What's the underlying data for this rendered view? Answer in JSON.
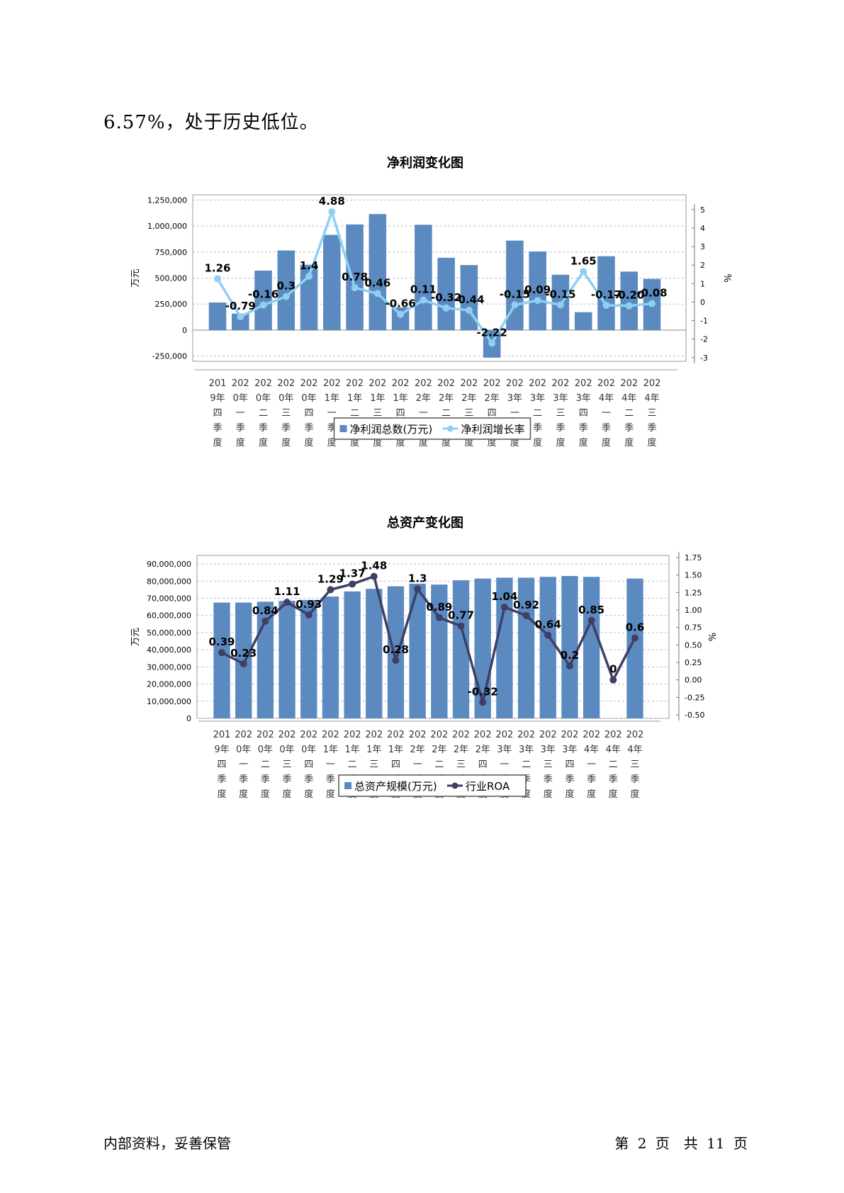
{
  "intro_text": "6.57%，处于历史低位。",
  "footer": {
    "left": "内部资料，妥善保管",
    "right": "第 2 页　共 11 页"
  },
  "colors": {
    "bar": "#5b8ac0",
    "line1": "#8ecff2",
    "line2": "#3f3f66",
    "grid": "#b9b9e8"
  },
  "chart_data": [
    {
      "type": "bar",
      "title": "净利润变化图",
      "ylabel": "万元",
      "y2label": "%",
      "ylim": [
        -300000,
        1300000
      ],
      "y2lim": [
        -3.2,
        5.8
      ],
      "yticks": [
        -250000,
        0,
        250000,
        500000,
        750000,
        1000000,
        1250000
      ],
      "ytick_labels": [
        "-250,000",
        "0",
        "250,000",
        "500,000",
        "750,000",
        "1,000,000",
        "1,250,000"
      ],
      "y2ticks": [
        -3,
        -2,
        -1,
        0,
        1,
        2,
        3,
        4,
        5
      ],
      "y2tick_labels": [
        "-3",
        "-2",
        "-1",
        "0",
        "1",
        "2",
        "3",
        "4",
        "5"
      ],
      "categories": [
        [
          "201",
          "9年",
          "四",
          "季",
          "度"
        ],
        [
          "202",
          "0年",
          "一",
          "季",
          "度"
        ],
        [
          "202",
          "0年",
          "二",
          "季",
          "度"
        ],
        [
          "202",
          "0年",
          "三",
          "季",
          "度"
        ],
        [
          "202",
          "0年",
          "四",
          "季",
          "度"
        ],
        [
          "202",
          "1年",
          "一",
          "季",
          "度"
        ],
        [
          "202",
          "1年",
          "二",
          "季",
          "度"
        ],
        [
          "202",
          "1年",
          "三",
          "季",
          "度"
        ],
        [
          "202",
          "1年",
          "四",
          "季",
          "度"
        ],
        [
          "202",
          "2年",
          "一",
          "季",
          "度"
        ],
        [
          "202",
          "2年",
          "二",
          "季",
          "度"
        ],
        [
          "202",
          "2年",
          "三",
          "季",
          "度"
        ],
        [
          "202",
          "2年",
          "四",
          "季",
          "度"
        ],
        [
          "202",
          "3年",
          "一",
          "季",
          "度"
        ],
        [
          "202",
          "3年",
          "二",
          "季",
          "度"
        ],
        [
          "202",
          "3年",
          "三",
          "季",
          "度"
        ],
        [
          "202",
          "3年",
          "四",
          "季",
          "度"
        ],
        [
          "202",
          "4年",
          "一",
          "季",
          "度"
        ],
        [
          "202",
          "4年",
          "二",
          "季",
          "度"
        ],
        [
          "202",
          "4年",
          "三",
          "季",
          "度"
        ]
      ],
      "series": [
        {
          "name": "净利润总数(万元)",
          "kind": "bar",
          "values": [
            265000,
            158000,
            572000,
            765000,
            628000,
            915000,
            1015000,
            1115000,
            218000,
            1012000,
            695000,
            625000,
            -265000,
            860000,
            755000,
            532000,
            172000,
            710000,
            562000,
            492000
          ]
        },
        {
          "name": "净利润增长率",
          "kind": "line",
          "axis": "right",
          "values": [
            1.26,
            -0.79,
            -0.16,
            0.3,
            1.4,
            4.88,
            0.78,
            0.46,
            -0.66,
            0.11,
            -0.32,
            -0.44,
            -2.22,
            -0.15,
            0.09,
            -0.15,
            1.65,
            -0.17,
            -0.2,
            -0.08
          ],
          "labels": [
            "1.26",
            "-0.79",
            "-0.16",
            "0.3",
            "1.4",
            "4.88",
            "0.78",
            "0.46",
            "-0.66",
            "0.11",
            "-0.32",
            "-0.44",
            "-2.22",
            "-0.15",
            "0.09",
            "-0.15",
            "1.65",
            "-0.17",
            "-0.20",
            "-0.08"
          ]
        }
      ],
      "legend_position": "bottom"
    },
    {
      "type": "bar",
      "title": "总资产变化图",
      "ylabel": "万元",
      "y2label": "%",
      "ylim": [
        0,
        95000000
      ],
      "y2lim": [
        -0.55,
        1.78
      ],
      "yticks": [
        0,
        10000000,
        20000000,
        30000000,
        40000000,
        50000000,
        60000000,
        70000000,
        80000000,
        90000000
      ],
      "ytick_labels": [
        "0",
        "10,000,000",
        "20,000,000",
        "30,000,000",
        "40,000,000",
        "50,000,000",
        "60,000,000",
        "70,000,000",
        "80,000,000",
        "90,000,000"
      ],
      "y2ticks": [
        -0.5,
        -0.25,
        0,
        0.25,
        0.5,
        0.75,
        1.0,
        1.25,
        1.5,
        1.75
      ],
      "y2tick_labels": [
        "-0.50",
        "-0.25",
        "0.00",
        "0.25",
        "0.50",
        "0.75",
        "1.00",
        "1.25",
        "1.50",
        "1.75"
      ],
      "categories": [
        [
          "201",
          "9年",
          "四",
          "季",
          "度"
        ],
        [
          "202",
          "0年",
          "一",
          "季",
          "度"
        ],
        [
          "202",
          "0年",
          "二",
          "季",
          "度"
        ],
        [
          "202",
          "0年",
          "三",
          "季",
          "度"
        ],
        [
          "202",
          "0年",
          "四",
          "季",
          "度"
        ],
        [
          "202",
          "1年",
          "一",
          "季",
          "度"
        ],
        [
          "202",
          "1年",
          "二",
          "季",
          "度"
        ],
        [
          "202",
          "1年",
          "三",
          "季",
          "度"
        ],
        [
          "202",
          "1年",
          "四",
          "季",
          "度"
        ],
        [
          "202",
          "2年",
          "一",
          "季",
          "度"
        ],
        [
          "202",
          "2年",
          "二",
          "季",
          "度"
        ],
        [
          "202",
          "2年",
          "三",
          "季",
          "度"
        ],
        [
          "202",
          "2年",
          "四",
          "季",
          "度"
        ],
        [
          "202",
          "3年",
          "一",
          "季",
          "度"
        ],
        [
          "202",
          "3年",
          "二",
          "季",
          "度"
        ],
        [
          "202",
          "3年",
          "三",
          "季",
          "度"
        ],
        [
          "202",
          "3年",
          "四",
          "季",
          "度"
        ],
        [
          "202",
          "4年",
          "一",
          "季",
          "度"
        ],
        [
          "202",
          "4年",
          "二",
          "季",
          "度"
        ],
        [
          "202",
          "4年",
          "三",
          "季",
          "度"
        ]
      ],
      "series": [
        {
          "name": "总资产规模(万元)",
          "kind": "bar",
          "values": [
            67500000,
            67500000,
            68000000,
            68500000,
            69000000,
            71000000,
            74000000,
            75500000,
            77000000,
            78500000,
            78000000,
            80500000,
            81500000,
            82000000,
            82000000,
            82500000,
            83000000,
            82500000,
            null,
            81500000
          ]
        },
        {
          "name": "行业ROA",
          "kind": "line",
          "axis": "right",
          "values": [
            0.39,
            0.23,
            0.84,
            1.11,
            0.93,
            1.29,
            1.37,
            1.48,
            0.28,
            1.3,
            0.89,
            0.77,
            -0.32,
            1.04,
            0.92,
            0.64,
            0.2,
            0.85,
            0.0,
            0.6
          ],
          "labels": [
            "0.39",
            "0.23",
            "0.84",
            "1.11",
            "0.93",
            "1.29",
            "1.37",
            "1.48",
            "0.28",
            "1.3",
            "0.89",
            "0.77",
            "-0.32",
            "1.04",
            "0.92",
            "0.64",
            "0.2",
            "0.85",
            "0",
            "0.6"
          ]
        }
      ],
      "legend_position": "bottom"
    }
  ]
}
